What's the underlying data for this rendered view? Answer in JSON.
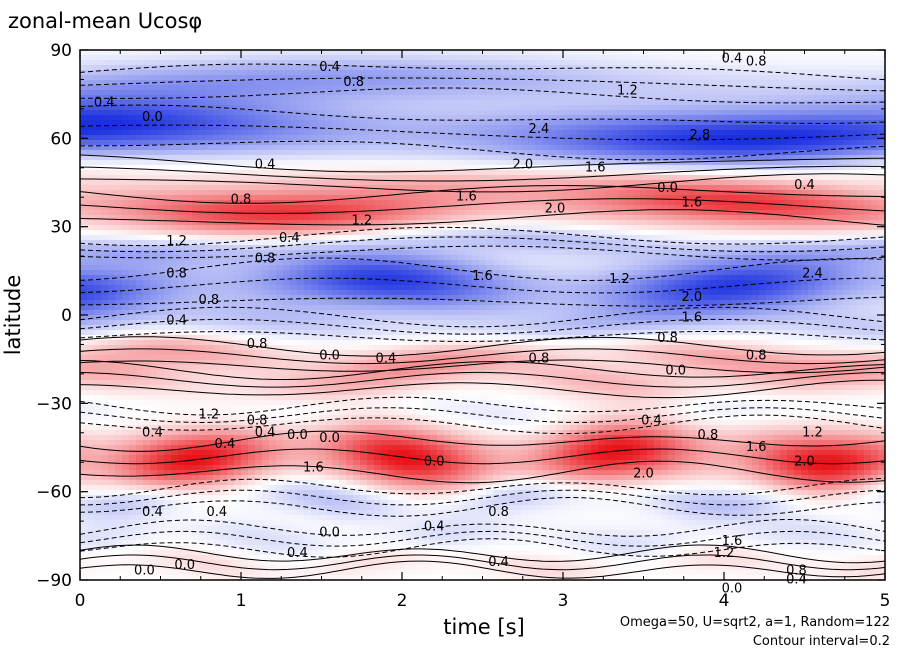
{
  "chart_data": {
    "type": "heatmap",
    "title": "zonal-mean Ucosφ",
    "xlabel": "time [s]",
    "ylabel": "latitude",
    "xlim": [
      0,
      5
    ],
    "ylim": [
      -90,
      90
    ],
    "x_ticks": [
      "0",
      "1",
      "2",
      "3",
      "4",
      "5"
    ],
    "y_ticks": [
      "−90",
      "−60",
      "−30",
      "0",
      "30",
      "60",
      "90"
    ],
    "x_tick_values": [
      0,
      1,
      2,
      3,
      4,
      5
    ],
    "y_tick_values": [
      -90,
      -60,
      -30,
      0,
      30,
      60,
      90
    ],
    "colors": {
      "positive": "#e8141a",
      "negative": "#1a2fe0",
      "zero": "#ffffff",
      "contour": "#000000"
    },
    "contour_interval": 0.2,
    "bands": [
      {
        "lat": 78,
        "width": 8,
        "amp": -1.2
      },
      {
        "lat": 62,
        "width": 10,
        "amp": -2.6
      },
      {
        "lat": 48,
        "width": 6,
        "amp": 0.6
      },
      {
        "lat": 37,
        "width": 8,
        "amp": 2.2
      },
      {
        "lat": 24,
        "width": 5,
        "amp": -0.8
      },
      {
        "lat": 10,
        "width": 10,
        "amp": -2.4
      },
      {
        "lat": -4,
        "width": 6,
        "amp": -0.6
      },
      {
        "lat": -14,
        "width": 6,
        "amp": 1.0
      },
      {
        "lat": -22,
        "width": 6,
        "amp": 0.8
      },
      {
        "lat": -34,
        "width": 6,
        "amp": -0.3
      },
      {
        "lat": -48,
        "width": 10,
        "amp": 2.6
      },
      {
        "lat": -62,
        "width": 6,
        "amp": -0.8
      },
      {
        "lat": -76,
        "width": 6,
        "amp": -0.4
      },
      {
        "lat": -84,
        "width": 5,
        "amp": 0.4
      }
    ],
    "contour_labels": [
      {
        "text": "0.4",
        "x": 1.55,
        "y": 84
      },
      {
        "text": "0.8",
        "x": 1.7,
        "y": 79
      },
      {
        "text": "0.4",
        "x": 4.05,
        "y": 87
      },
      {
        "text": "0.8",
        "x": 4.2,
        "y": 86
      },
      {
        "text": "0.4",
        "x": 0.15,
        "y": 72
      },
      {
        "text": "0.0",
        "x": 0.45,
        "y": 67
      },
      {
        "text": "1.2",
        "x": 3.4,
        "y": 76
      },
      {
        "text": "2.4",
        "x": 2.85,
        "y": 63
      },
      {
        "text": "2.8",
        "x": 3.85,
        "y": 61
      },
      {
        "text": "2.0",
        "x": 2.75,
        "y": 51
      },
      {
        "text": "1.6",
        "x": 3.2,
        "y": 50
      },
      {
        "text": "0.4",
        "x": 1.15,
        "y": 51
      },
      {
        "text": "0.4",
        "x": 4.5,
        "y": 44
      },
      {
        "text": "0.0",
        "x": 3.65,
        "y": 43
      },
      {
        "text": "1.6",
        "x": 2.4,
        "y": 40
      },
      {
        "text": "2.0",
        "x": 2.95,
        "y": 36
      },
      {
        "text": "1.6",
        "x": 3.8,
        "y": 38
      },
      {
        "text": "1.2",
        "x": 1.75,
        "y": 32
      },
      {
        "text": "0.8",
        "x": 1.0,
        "y": 39
      },
      {
        "text": "1.2",
        "x": 0.6,
        "y": 25
      },
      {
        "text": "0.4",
        "x": 1.3,
        "y": 26
      },
      {
        "text": "0.8",
        "x": 1.15,
        "y": 19
      },
      {
        "text": "1.6",
        "x": 2.5,
        "y": 13
      },
      {
        "text": "1.2",
        "x": 3.35,
        "y": 12
      },
      {
        "text": "2.4",
        "x": 4.55,
        "y": 14
      },
      {
        "text": "2.0",
        "x": 3.8,
        "y": 6
      },
      {
        "text": "1.6",
        "x": 3.8,
        "y": -1
      },
      {
        "text": "0.8",
        "x": 0.6,
        "y": 14
      },
      {
        "text": "0.8",
        "x": 0.8,
        "y": 5
      },
      {
        "text": "0.4",
        "x": 0.6,
        "y": -2
      },
      {
        "text": "0.8",
        "x": 1.1,
        "y": -10
      },
      {
        "text": "0.0",
        "x": 1.55,
        "y": -14
      },
      {
        "text": "0.4",
        "x": 1.9,
        "y": -15
      },
      {
        "text": "0.8",
        "x": 3.65,
        "y": -8
      },
      {
        "text": "0.0",
        "x": 3.7,
        "y": -19
      },
      {
        "text": "0.8",
        "x": 4.2,
        "y": -14
      },
      {
        "text": "0.8",
        "x": 2.85,
        "y": -15
      },
      {
        "text": "0.4",
        "x": 3.55,
        "y": -36
      },
      {
        "text": "0.8",
        "x": 3.9,
        "y": -41
      },
      {
        "text": "1.6",
        "x": 4.2,
        "y": -45
      },
      {
        "text": "1.2",
        "x": 4.55,
        "y": -40
      },
      {
        "text": "2.0",
        "x": 4.5,
        "y": -50
      },
      {
        "text": "1.2",
        "x": 0.8,
        "y": -34
      },
      {
        "text": "0.8",
        "x": 1.1,
        "y": -36
      },
      {
        "text": "0.4",
        "x": 0.45,
        "y": -40
      },
      {
        "text": "0.4",
        "x": 0.9,
        "y": -44
      },
      {
        "text": "0.4",
        "x": 1.15,
        "y": -40
      },
      {
        "text": "0.0",
        "x": 1.35,
        "y": -41
      },
      {
        "text": "0.0",
        "x": 1.55,
        "y": -42
      },
      {
        "text": "0.0",
        "x": 2.2,
        "y": -50
      },
      {
        "text": "2.0",
        "x": 3.5,
        "y": -54
      },
      {
        "text": "1.6",
        "x": 1.45,
        "y": -52
      },
      {
        "text": "0.4",
        "x": 0.45,
        "y": -67
      },
      {
        "text": "0.4",
        "x": 0.85,
        "y": -67
      },
      {
        "text": "0.8",
        "x": 2.6,
        "y": -67
      },
      {
        "text": "0.4",
        "x": 2.2,
        "y": -72
      },
      {
        "text": "0.0",
        "x": 1.55,
        "y": -74
      },
      {
        "text": "1.6",
        "x": 4.05,
        "y": -77
      },
      {
        "text": "1.2",
        "x": 4.0,
        "y": -81
      },
      {
        "text": "0.4",
        "x": 1.35,
        "y": -81
      },
      {
        "text": "0.4",
        "x": 2.6,
        "y": -84
      },
      {
        "text": "0.0",
        "x": 0.4,
        "y": -87
      },
      {
        "text": "0.0",
        "x": 0.65,
        "y": -85
      },
      {
        "text": "0.8",
        "x": 4.45,
        "y": -87
      },
      {
        "text": "0.4",
        "x": 4.45,
        "y": -90
      },
      {
        "text": "0.0",
        "x": 4.05,
        "y": -93
      }
    ]
  },
  "footer": {
    "params": "Omega=50, U=sqrt2, a=1, Random=122",
    "contour_interval": "Contour interval=0.2"
  }
}
